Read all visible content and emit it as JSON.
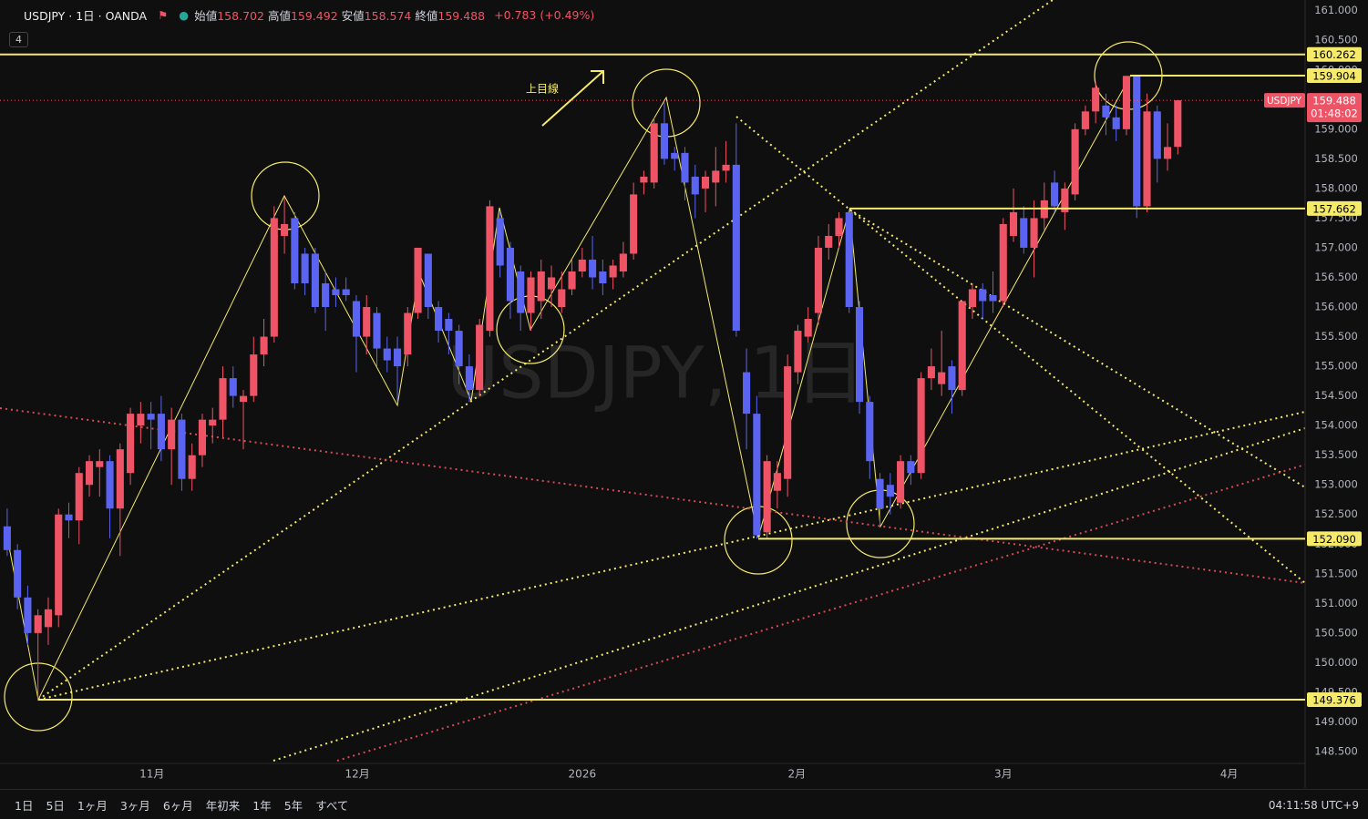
{
  "toolbar": {
    "symbol": "USDJPY · 1日 · OANDA",
    "ohlc": [
      {
        "label": "始値",
        "value": 158.702
      },
      {
        "label": "高値",
        "value": 159.492
      },
      {
        "label": "安値",
        "value": 158.574
      },
      {
        "label": "終値",
        "value": 159.488
      }
    ],
    "change": "+0.783 (+0.49%)",
    "indicator_count": "4"
  },
  "chart_data": {
    "type": "candlestick",
    "watermark": "USDJPY, 1日",
    "annotation": "上目線",
    "up_color": "#ef5366",
    "down_color": "#5a64f0",
    "open": [
      152.3,
      151.9,
      151.1,
      150.5,
      150.6,
      150.8,
      152.5,
      152.4,
      153.0,
      153.3,
      153.4,
      152.6,
      153.2,
      154.0,
      154.2,
      154.2,
      153.6,
      154.1,
      153.1,
      153.5,
      154.0,
      154.1,
      154.8,
      154.4,
      154.5,
      155.2,
      155.5,
      157.2,
      157.5,
      156.9,
      156.9,
      156.4,
      156.3,
      156.3,
      156.1,
      155.5,
      155.9,
      155.3,
      155.3,
      155.2,
      155.9,
      156.9,
      156.0,
      155.8,
      155.6,
      155.0,
      154.6,
      155.6,
      157.5,
      157.0,
      156.6,
      155.9,
      156.1,
      156.3,
      156.0,
      156.3,
      156.6,
      156.8,
      156.6,
      156.5,
      156.6,
      156.9,
      158.1,
      158.1,
      159.1,
      158.6,
      158.6,
      158.2,
      158.0,
      158.1,
      158.3,
      158.4,
      154.9,
      154.2,
      152.2,
      152.9,
      153.1,
      154.9,
      155.5,
      155.9,
      157.0,
      157.2,
      157.6,
      156.0,
      154.4,
      153.1,
      153.0,
      152.7,
      153.4,
      153.2,
      154.8,
      154.7,
      155.0,
      154.6,
      156.0,
      156.3,
      156.2,
      156.1,
      157.2,
      157.5,
      157.0,
      157.5,
      158.1,
      157.6,
      157.9,
      159.0,
      159.3,
      159.4,
      159.2,
      159.0,
      159.9,
      157.7,
      159.3,
      158.5,
      158.702
    ],
    "high": [
      152.6,
      152.0,
      151.3,
      150.9,
      151.1,
      152.6,
      152.7,
      153.3,
      153.5,
      153.6,
      153.5,
      153.7,
      154.3,
      154.4,
      154.4,
      154.5,
      154.3,
      154.2,
      153.7,
      154.2,
      154.3,
      155.0,
      155.0,
      154.6,
      155.5,
      155.8,
      157.7,
      157.85,
      157.6,
      157.0,
      157.0,
      156.6,
      156.5,
      156.5,
      156.2,
      156.2,
      156.0,
      155.5,
      155.5,
      156.0,
      157.0,
      156.9,
      156.1,
      155.9,
      155.7,
      155.2,
      155.8,
      157.8,
      157.6,
      157.1,
      156.7,
      156.6,
      156.8,
      156.7,
      156.6,
      156.8,
      157.0,
      157.2,
      156.8,
      156.8,
      157.1,
      158.1,
      158.3,
      159.2,
      159.45,
      158.7,
      158.7,
      158.4,
      158.3,
      158.7,
      158.8,
      159.1,
      155.3,
      154.5,
      153.5,
      153.4,
      155.2,
      155.7,
      156.0,
      157.2,
      157.4,
      157.6,
      157.66,
      156.1,
      154.5,
      153.2,
      153.2,
      153.5,
      153.5,
      154.9,
      155.3,
      155.6,
      155.1,
      156.1,
      156.4,
      156.4,
      156.6,
      157.5,
      158.0,
      157.7,
      157.8,
      158.1,
      158.3,
      158.1,
      159.1,
      159.4,
      159.8,
      159.6,
      159.4,
      159.9,
      159.9,
      159.6,
      159.4,
      159.1,
      159.492
    ],
    "low": [
      151.8,
      150.9,
      150.3,
      149.38,
      150.3,
      150.6,
      152.1,
      152.0,
      152.8,
      152.8,
      152.1,
      151.8,
      153.0,
      153.7,
      153.6,
      153.4,
      153.0,
      152.9,
      152.9,
      153.3,
      153.7,
      153.8,
      154.3,
      153.6,
      154.4,
      155.0,
      155.4,
      156.9,
      156.3,
      156.2,
      155.9,
      155.6,
      156.0,
      156.1,
      154.9,
      155.2,
      155.0,
      154.9,
      154.4,
      155.0,
      155.8,
      155.8,
      155.4,
      155.2,
      154.7,
      154.4,
      154.5,
      155.5,
      156.5,
      155.8,
      155.6,
      155.6,
      155.8,
      156.0,
      155.9,
      156.2,
      156.5,
      156.3,
      156.2,
      156.3,
      156.5,
      156.8,
      157.9,
      158.0,
      158.4,
      158.3,
      157.8,
      157.5,
      157.6,
      157.7,
      158.1,
      155.5,
      153.6,
      152.09,
      152.1,
      152.6,
      152.8,
      154.7,
      155.4,
      155.7,
      156.8,
      157.0,
      155.9,
      154.2,
      153.1,
      152.3,
      152.5,
      152.6,
      153.0,
      153.1,
      154.6,
      154.5,
      154.2,
      154.5,
      155.8,
      155.8,
      155.9,
      156.0,
      157.1,
      156.9,
      156.5,
      157.3,
      157.6,
      157.3,
      157.8,
      158.9,
      159.1,
      158.9,
      158.8,
      158.9,
      157.5,
      157.6,
      158.1,
      158.3,
      158.574
    ],
    "close": [
      151.9,
      151.1,
      150.5,
      150.8,
      150.9,
      152.5,
      152.4,
      153.2,
      153.4,
      153.4,
      152.6,
      153.6,
      154.2,
      154.2,
      154.1,
      153.6,
      154.1,
      153.1,
      153.5,
      154.1,
      154.1,
      154.8,
      154.5,
      154.5,
      155.2,
      155.5,
      157.5,
      157.4,
      156.4,
      156.4,
      156.0,
      156.0,
      156.2,
      156.2,
      155.5,
      156.0,
      155.3,
      155.1,
      155.0,
      155.9,
      157.0,
      156.0,
      155.6,
      155.6,
      155.0,
      154.6,
      155.7,
      157.7,
      156.7,
      156.1,
      155.9,
      156.5,
      156.6,
      156.5,
      156.3,
      156.6,
      156.8,
      156.5,
      156.4,
      156.7,
      156.9,
      157.9,
      158.2,
      159.1,
      158.5,
      158.5,
      158.1,
      157.9,
      158.2,
      158.3,
      158.4,
      155.6,
      154.2,
      152.15,
      153.4,
      153.2,
      155.0,
      155.6,
      155.8,
      157.0,
      157.2,
      157.5,
      156.0,
      154.4,
      153.4,
      152.6,
      152.8,
      153.4,
      153.2,
      154.8,
      155.0,
      154.9,
      154.6,
      156.1,
      156.3,
      156.1,
      156.1,
      157.4,
      157.6,
      157.0,
      157.5,
      157.8,
      157.7,
      158.0,
      159.0,
      159.3,
      159.7,
      159.2,
      159.0,
      159.9,
      157.7,
      159.3,
      158.5,
      158.7,
      159.488
    ],
    "xlim": [
      -0.7,
      126.4
    ],
    "xticks": [
      {
        "value": 14.1,
        "label": "11月"
      },
      {
        "value": 34.1,
        "label": "12月"
      },
      {
        "value": 56.0,
        "label": "2026"
      },
      {
        "value": 76.9,
        "label": "2月"
      },
      {
        "value": 97.0,
        "label": "3月"
      },
      {
        "value": 119.0,
        "label": "4月"
      }
    ],
    "ylim": [
      148.3,
      161.18
    ],
    "yticks": [
      {
        "value": 148.5,
        "label": "148.500"
      },
      {
        "value": 149,
        "label": "149.000"
      },
      {
        "value": 149.5,
        "label": "149.500"
      },
      {
        "value": 150,
        "label": "150.000"
      },
      {
        "value": 150.5,
        "label": "150.500"
      },
      {
        "value": 151,
        "label": "151.000"
      },
      {
        "value": 151.5,
        "label": "151.500"
      },
      {
        "value": 152,
        "label": "152.000"
      },
      {
        "value": 152.5,
        "label": "152.500"
      },
      {
        "value": 153,
        "label": "153.000"
      },
      {
        "value": 153.5,
        "label": "153.500"
      },
      {
        "value": 154,
        "label": "154.000"
      },
      {
        "value": 154.5,
        "label": "154.500"
      },
      {
        "value": 155,
        "label": "155.000"
      },
      {
        "value": 155.5,
        "label": "155.500"
      },
      {
        "value": 156,
        "label": "156.000"
      },
      {
        "value": 156.5,
        "label": "156.500"
      },
      {
        "value": 157,
        "label": "157.000"
      },
      {
        "value": 157.5,
        "label": "157.500"
      },
      {
        "value": 158,
        "label": "158.000"
      },
      {
        "value": 158.5,
        "label": "158.500"
      },
      {
        "value": 159,
        "label": "159.000"
      },
      {
        "value": 159.5,
        "label": "159.500"
      },
      {
        "value": 160,
        "label": "160.000"
      },
      {
        "value": 160.5,
        "label": "160.500"
      },
      {
        "value": 161,
        "label": "161.000"
      }
    ],
    "level_color": "#f5ea6a",
    "levels": [
      160.262,
      159.904,
      157.662,
      {
        "value": 152.09,
        "label": "152.090"
      },
      149.376
    ],
    "last_price": {
      "symbol": "USDJPY",
      "value": 159.488,
      "countdown": "01:48:02"
    }
  },
  "bottom_bar": {
    "ranges": [
      "1日",
      "5日",
      "1ヶ月",
      "3ヶ月",
      "6ヶ月",
      "年初来",
      "1年",
      "5年",
      "すべて"
    ],
    "clock": "04:11:58 UTC+9"
  }
}
